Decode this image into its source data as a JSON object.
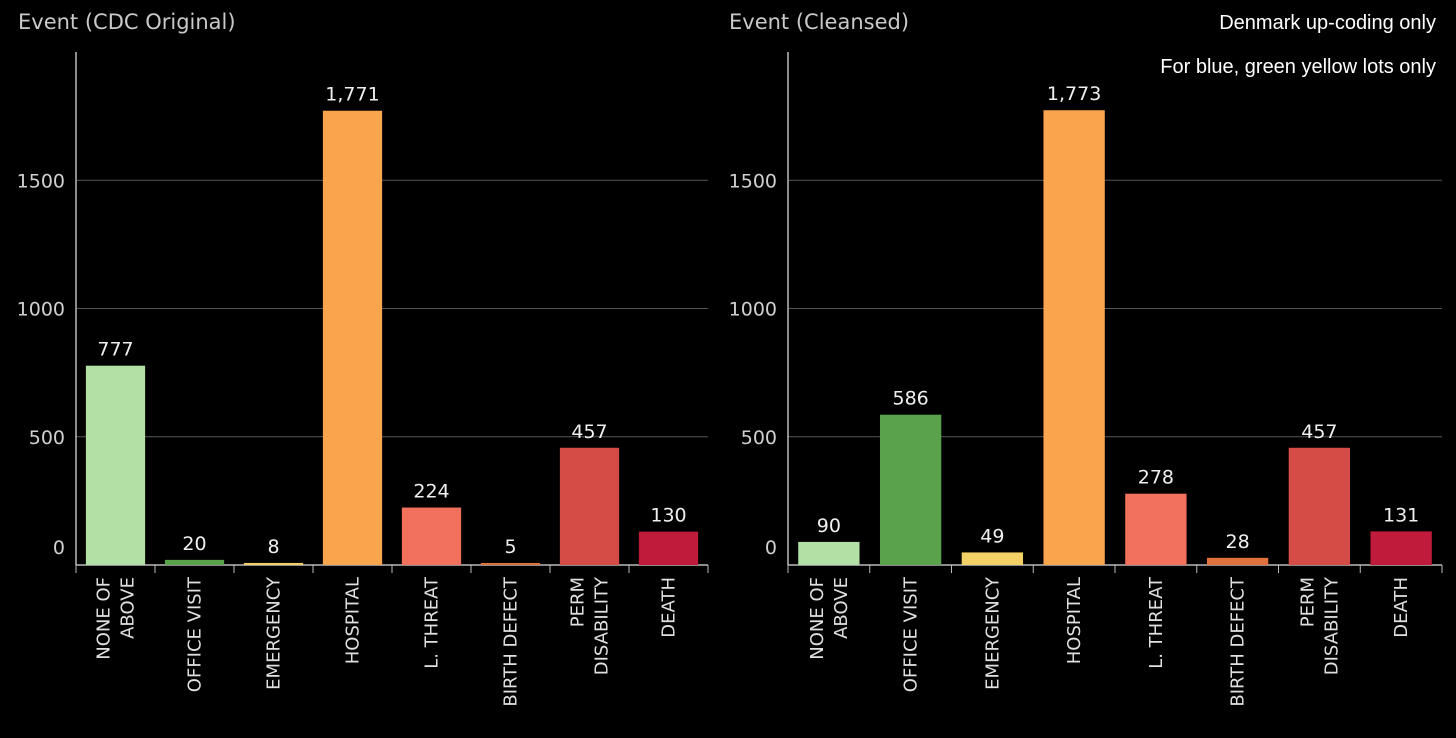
{
  "annotations": {
    "line1": "Denmark up-coding only",
    "line2": "For blue, green yellow lots only"
  },
  "chart_data": [
    {
      "type": "bar",
      "title": "Event (CDC Original)",
      "xlabel": "",
      "ylabel": "",
      "ylim": [
        0,
        2000
      ],
      "yticks": [
        0,
        500,
        1000,
        1500
      ],
      "ytick_labels": [
        "0",
        "500",
        "1000",
        "1500"
      ],
      "grid": true,
      "categories": [
        [
          "NONE OF",
          "ABOVE"
        ],
        [
          "OFFICE VISIT"
        ],
        [
          "EMERGENCY"
        ],
        [
          "HOSPITAL"
        ],
        [
          "L. THREAT"
        ],
        [
          "BIRTH DEFECT"
        ],
        [
          "PERM",
          "DISABILITY"
        ],
        [
          "DEATH"
        ]
      ],
      "values": [
        777,
        20,
        8,
        1771,
        224,
        5,
        457,
        130
      ],
      "value_labels": [
        "777",
        "20",
        "8",
        "1,771",
        "224",
        "5",
        "457",
        "130"
      ],
      "colors": [
        "#b3e0a4",
        "#5aa24c",
        "#f4d166",
        "#f9a54e",
        "#f2715d",
        "#e0703c",
        "#d44c45",
        "#c11b3c"
      ]
    },
    {
      "type": "bar",
      "title": "Event (Cleansed)",
      "xlabel": "",
      "ylabel": "",
      "ylim": [
        0,
        2000
      ],
      "yticks": [
        0,
        500,
        1000,
        1500
      ],
      "ytick_labels": [
        "0",
        "500",
        "1000",
        "1500"
      ],
      "grid": true,
      "categories": [
        [
          "NONE OF",
          "ABOVE"
        ],
        [
          "OFFICE VISIT"
        ],
        [
          "EMERGENCY"
        ],
        [
          "HOSPITAL"
        ],
        [
          "L. THREAT"
        ],
        [
          "BIRTH DEFECT"
        ],
        [
          "PERM",
          "DISABILITY"
        ],
        [
          "DEATH"
        ]
      ],
      "values": [
        90,
        586,
        49,
        1773,
        278,
        28,
        457,
        131
      ],
      "value_labels": [
        "90",
        "586",
        "49",
        "1,773",
        "278",
        "28",
        "457",
        "131"
      ],
      "colors": [
        "#b3e0a4",
        "#5aa24c",
        "#f4d166",
        "#f9a54e",
        "#f2715d",
        "#e0703c",
        "#d44c45",
        "#c11b3c"
      ]
    }
  ]
}
